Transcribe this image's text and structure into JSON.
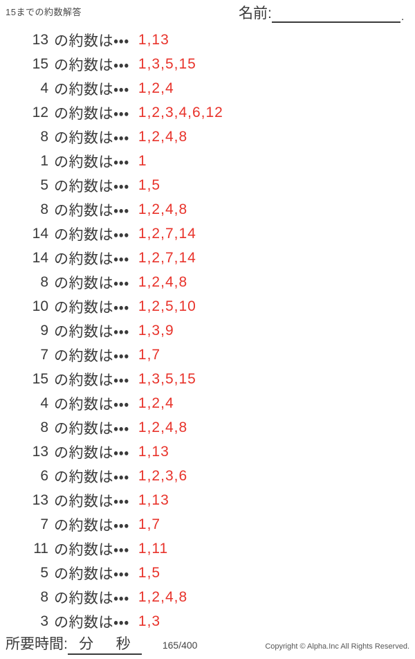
{
  "header": {
    "title": "15までの約数解答",
    "name_label": "名前:",
    "name_line_end": "."
  },
  "row_label": "の約数は・・・",
  "rows": [
    {
      "n": "13",
      "answer": "1,13"
    },
    {
      "n": "15",
      "answer": "1,3,5,15"
    },
    {
      "n": "4",
      "answer": "1,2,4"
    },
    {
      "n": "12",
      "answer": "1,2,3,4,6,12"
    },
    {
      "n": "8",
      "answer": "1,2,4,8"
    },
    {
      "n": "1",
      "answer": "1"
    },
    {
      "n": "5",
      "answer": "1,5"
    },
    {
      "n": "8",
      "answer": "1,2,4,8"
    },
    {
      "n": "14",
      "answer": "1,2,7,14"
    },
    {
      "n": "14",
      "answer": "1,2,7,14"
    },
    {
      "n": "8",
      "answer": "1,2,4,8"
    },
    {
      "n": "10",
      "answer": "1,2,5,10"
    },
    {
      "n": "9",
      "answer": "1,3,9"
    },
    {
      "n": "7",
      "answer": "1,7"
    },
    {
      "n": "15",
      "answer": "1,3,5,15"
    },
    {
      "n": "4",
      "answer": "1,2,4"
    },
    {
      "n": "8",
      "answer": "1,2,4,8"
    },
    {
      "n": "13",
      "answer": "1,13"
    },
    {
      "n": "6",
      "answer": "1,2,3,6"
    },
    {
      "n": "13",
      "answer": "1,13"
    },
    {
      "n": "7",
      "answer": "1,7"
    },
    {
      "n": "11",
      "answer": "1,11"
    },
    {
      "n": "5",
      "answer": "1,5"
    },
    {
      "n": "8",
      "answer": "1,2,4,8"
    },
    {
      "n": "3",
      "answer": "1,3"
    }
  ],
  "footer": {
    "time_label": "所要時間:",
    "minutes_label": "分",
    "seconds_label": "秒",
    "page": "165/400",
    "copyright": "Copyright ©  Alpha.Inc All Rights Reserved."
  },
  "colors": {
    "answer_red": "#e8332b",
    "body_text": "#3a3a3a"
  }
}
